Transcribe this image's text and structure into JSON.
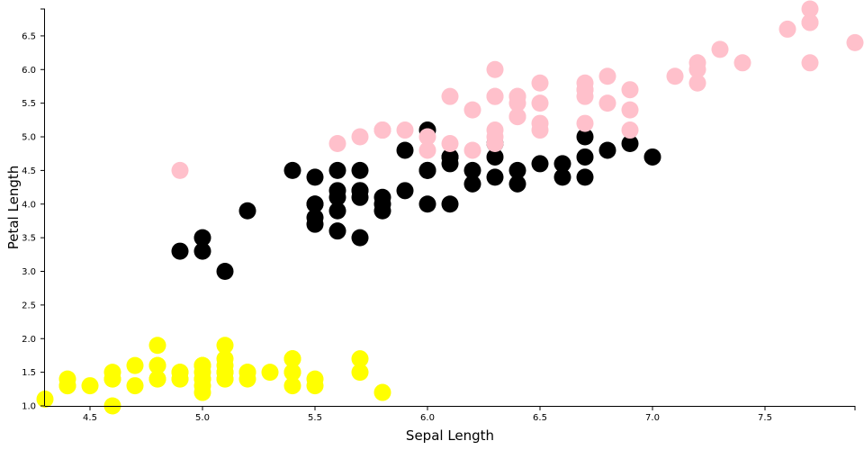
{
  "chart_data": {
    "type": "scatter",
    "title": "",
    "xlabel": "Sepal Length",
    "ylabel": "Petal Length",
    "xlim": [
      4.3,
      7.9
    ],
    "ylim": [
      1.0,
      6.9
    ],
    "xticks": [
      "4.5",
      "5.0",
      "5.5",
      "6.0",
      "6.5",
      "7.0",
      "7.5"
    ],
    "yticks": [
      "1.0",
      "1.5",
      "2.0",
      "2.5",
      "3.0",
      "3.5",
      "4.0",
      "4.5",
      "5.0",
      "5.5",
      "6.0",
      "6.5"
    ],
    "grid": false,
    "legend": "none",
    "series": [
      {
        "color": "#ffff00",
        "points": [
          [
            5.1,
            1.4
          ],
          [
            4.9,
            1.4
          ],
          [
            4.7,
            1.3
          ],
          [
            4.6,
            1.5
          ],
          [
            5.0,
            1.4
          ],
          [
            5.4,
            1.7
          ],
          [
            4.6,
            1.4
          ],
          [
            5.0,
            1.5
          ],
          [
            4.4,
            1.4
          ],
          [
            4.9,
            1.5
          ],
          [
            5.4,
            1.5
          ],
          [
            4.8,
            1.6
          ],
          [
            4.8,
            1.4
          ],
          [
            4.3,
            1.1
          ],
          [
            5.8,
            1.2
          ],
          [
            5.7,
            1.5
          ],
          [
            5.4,
            1.3
          ],
          [
            5.1,
            1.4
          ],
          [
            5.7,
            1.7
          ],
          [
            5.1,
            1.5
          ],
          [
            5.4,
            1.7
          ],
          [
            5.1,
            1.5
          ],
          [
            4.6,
            1.0
          ],
          [
            5.1,
            1.7
          ],
          [
            4.8,
            1.9
          ],
          [
            5.0,
            1.6
          ],
          [
            5.0,
            1.6
          ],
          [
            5.2,
            1.5
          ],
          [
            5.2,
            1.4
          ],
          [
            4.7,
            1.6
          ],
          [
            4.8,
            1.6
          ],
          [
            5.4,
            1.5
          ],
          [
            5.2,
            1.5
          ],
          [
            5.5,
            1.4
          ],
          [
            4.9,
            1.5
          ],
          [
            5.0,
            1.2
          ],
          [
            5.5,
            1.3
          ],
          [
            4.9,
            1.4
          ],
          [
            4.4,
            1.3
          ],
          [
            5.1,
            1.5
          ],
          [
            5.0,
            1.3
          ],
          [
            4.5,
            1.3
          ],
          [
            4.4,
            1.3
          ],
          [
            5.0,
            1.6
          ],
          [
            5.1,
            1.9
          ],
          [
            4.8,
            1.4
          ],
          [
            5.1,
            1.6
          ],
          [
            4.6,
            1.4
          ],
          [
            5.3,
            1.5
          ],
          [
            5.0,
            1.4
          ]
        ]
      },
      {
        "color": "#000000",
        "points": [
          [
            7.0,
            4.7
          ],
          [
            6.4,
            4.5
          ],
          [
            6.9,
            4.9
          ],
          [
            5.5,
            4.0
          ],
          [
            6.5,
            4.6
          ],
          [
            5.7,
            4.5
          ],
          [
            6.3,
            4.7
          ],
          [
            4.9,
            3.3
          ],
          [
            6.6,
            4.6
          ],
          [
            5.2,
            3.9
          ],
          [
            5.0,
            3.5
          ],
          [
            5.9,
            4.2
          ],
          [
            6.0,
            4.0
          ],
          [
            6.1,
            4.7
          ],
          [
            5.6,
            3.6
          ],
          [
            6.7,
            4.4
          ],
          [
            5.6,
            4.5
          ],
          [
            5.8,
            4.1
          ],
          [
            6.2,
            4.5
          ],
          [
            5.6,
            3.9
          ],
          [
            5.9,
            4.8
          ],
          [
            6.1,
            4.0
          ],
          [
            6.3,
            4.9
          ],
          [
            6.1,
            4.7
          ],
          [
            6.4,
            4.3
          ],
          [
            6.6,
            4.4
          ],
          [
            6.8,
            4.8
          ],
          [
            6.7,
            5.0
          ],
          [
            6.0,
            4.5
          ],
          [
            5.7,
            3.5
          ],
          [
            5.5,
            3.8
          ],
          [
            5.5,
            3.7
          ],
          [
            5.8,
            3.9
          ],
          [
            6.0,
            5.1
          ],
          [
            5.4,
            4.5
          ],
          [
            6.0,
            4.5
          ],
          [
            6.7,
            4.7
          ],
          [
            6.3,
            4.4
          ],
          [
            5.6,
            4.1
          ],
          [
            5.5,
            4.0
          ],
          [
            5.5,
            4.4
          ],
          [
            6.1,
            4.6
          ],
          [
            5.8,
            4.0
          ],
          [
            5.0,
            3.3
          ],
          [
            5.6,
            4.2
          ],
          [
            5.7,
            4.2
          ],
          [
            5.7,
            4.2
          ],
          [
            6.2,
            4.3
          ],
          [
            5.1,
            3.0
          ],
          [
            5.7,
            4.1
          ]
        ]
      },
      {
        "color": "#ffc0cb",
        "points": [
          [
            6.3,
            6.0
          ],
          [
            5.8,
            5.1
          ],
          [
            7.1,
            5.9
          ],
          [
            6.3,
            5.6
          ],
          [
            6.5,
            5.8
          ],
          [
            7.6,
            6.6
          ],
          [
            4.9,
            4.5
          ],
          [
            7.3,
            6.3
          ],
          [
            6.7,
            5.8
          ],
          [
            7.2,
            6.1
          ],
          [
            6.5,
            5.1
          ],
          [
            6.4,
            5.3
          ],
          [
            6.8,
            5.5
          ],
          [
            5.7,
            5.0
          ],
          [
            5.8,
            5.1
          ],
          [
            6.4,
            5.3
          ],
          [
            6.5,
            5.5
          ],
          [
            7.7,
            6.7
          ],
          [
            7.7,
            6.9
          ],
          [
            6.0,
            5.0
          ],
          [
            6.9,
            5.7
          ],
          [
            5.6,
            4.9
          ],
          [
            7.7,
            6.7
          ],
          [
            6.3,
            4.9
          ],
          [
            6.7,
            5.7
          ],
          [
            7.2,
            6.0
          ],
          [
            6.2,
            4.8
          ],
          [
            6.1,
            4.9
          ],
          [
            6.4,
            5.6
          ],
          [
            7.2,
            5.8
          ],
          [
            7.4,
            6.1
          ],
          [
            7.9,
            6.4
          ],
          [
            6.4,
            5.6
          ],
          [
            6.3,
            5.1
          ],
          [
            6.1,
            5.6
          ],
          [
            7.7,
            6.1
          ],
          [
            6.3,
            5.6
          ],
          [
            6.4,
            5.5
          ],
          [
            6.0,
            4.8
          ],
          [
            6.9,
            5.4
          ],
          [
            6.7,
            5.6
          ],
          [
            6.9,
            5.1
          ],
          [
            5.8,
            5.1
          ],
          [
            6.8,
            5.9
          ],
          [
            6.7,
            5.7
          ],
          [
            6.7,
            5.2
          ],
          [
            6.3,
            5.0
          ],
          [
            6.5,
            5.2
          ],
          [
            6.2,
            5.4
          ],
          [
            5.9,
            5.1
          ]
        ]
      }
    ]
  }
}
